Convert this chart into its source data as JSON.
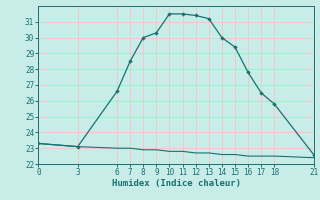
{
  "xlabel": "Humidex (Indice chaleur)",
  "bg_color": "#c8ece8",
  "grid_color": "#f0c8c8",
  "line_color": "#1a7070",
  "x_ticks": [
    0,
    3,
    6,
    7,
    8,
    9,
    10,
    11,
    12,
    13,
    14,
    15,
    16,
    17,
    18,
    21
  ],
  "xlim": [
    0,
    21
  ],
  "ylim": [
    22,
    32
  ],
  "y_ticks": [
    22,
    23,
    24,
    25,
    26,
    27,
    28,
    29,
    30,
    31
  ],
  "curve1_x": [
    0,
    3,
    6,
    7,
    8,
    9,
    10,
    11,
    12,
    13,
    14,
    15,
    16,
    17,
    18,
    21
  ],
  "curve1_y": [
    23.3,
    23.1,
    26.6,
    28.5,
    30.0,
    30.3,
    31.5,
    31.5,
    31.4,
    31.2,
    30.0,
    29.4,
    27.8,
    26.5,
    25.8,
    22.6
  ],
  "curve2_x": [
    0,
    3,
    6,
    7,
    8,
    9,
    10,
    11,
    12,
    13,
    14,
    15,
    16,
    17,
    18,
    21
  ],
  "curve2_y": [
    23.3,
    23.1,
    23.0,
    23.0,
    22.9,
    22.9,
    22.8,
    22.8,
    22.7,
    22.7,
    22.6,
    22.6,
    22.5,
    22.5,
    22.5,
    22.4
  ],
  "tick_fontsize": 5.5,
  "xlabel_fontsize": 6.5
}
